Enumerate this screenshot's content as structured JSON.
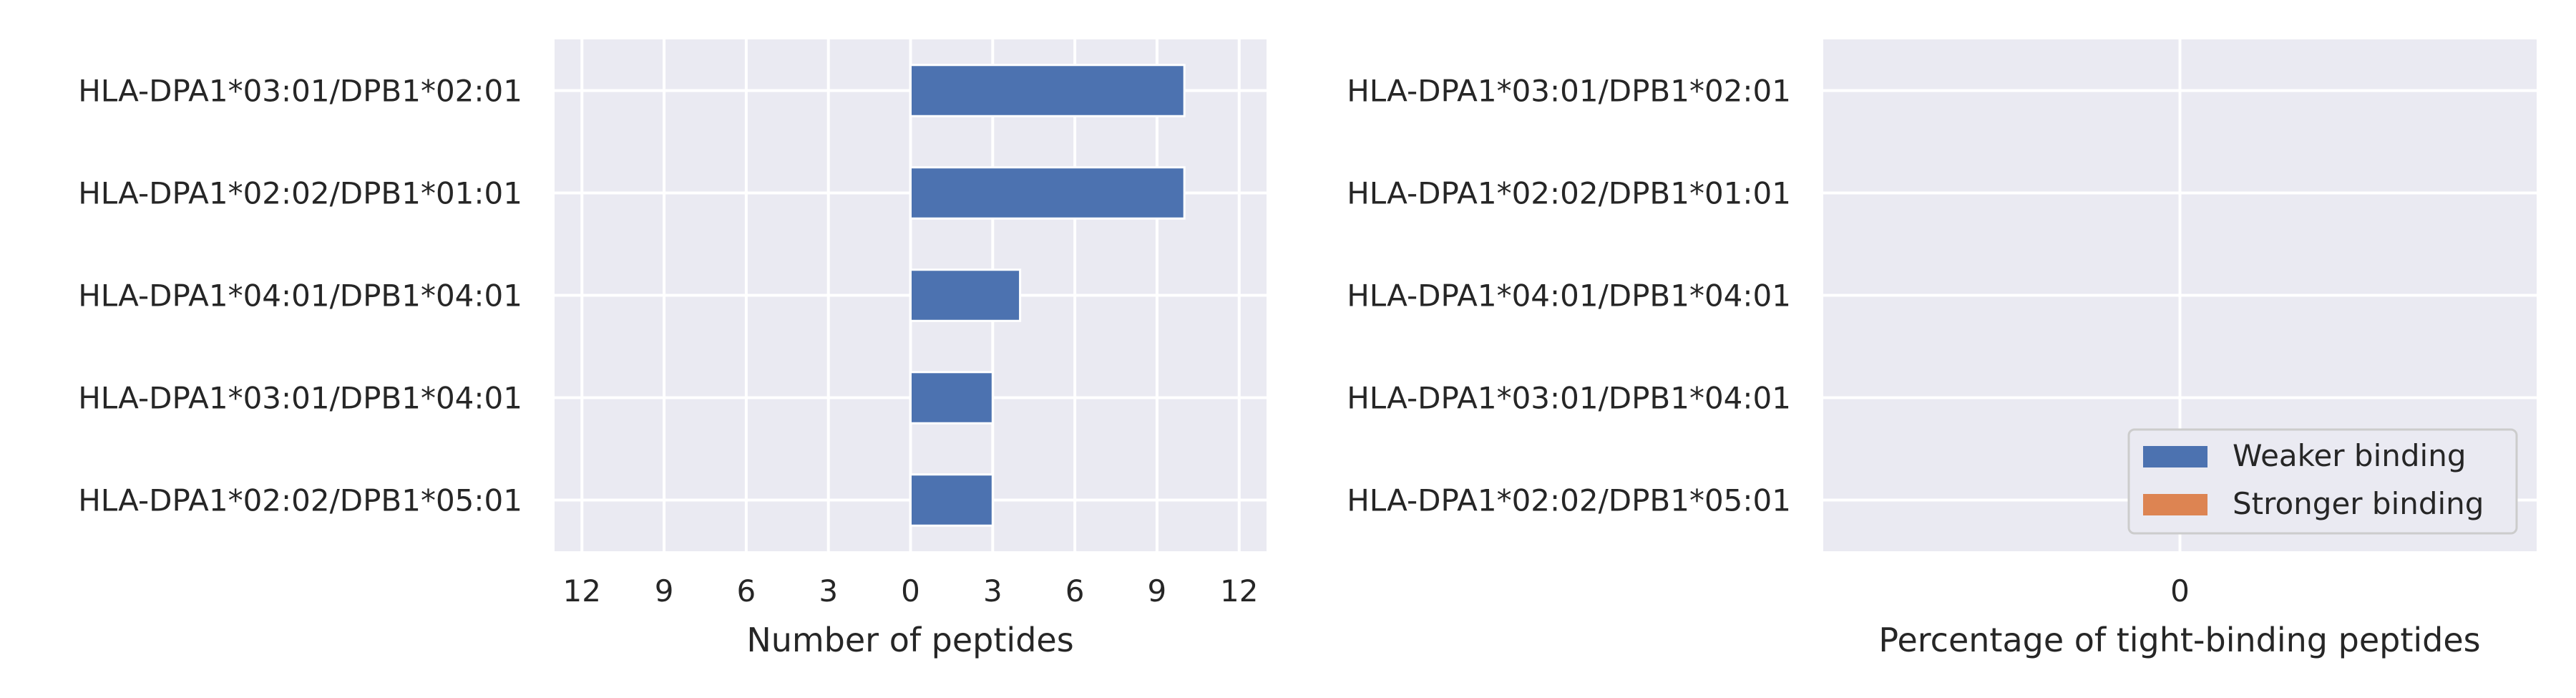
{
  "chart_data": [
    {
      "type": "bar",
      "orientation": "horizontal",
      "categories": [
        "HLA-DPA1*03:01/DPB1*02:01",
        "HLA-DPA1*02:02/DPB1*01:01",
        "HLA-DPA1*04:01/DPB1*04:01",
        "HLA-DPA1*03:01/DPB1*04:01",
        "HLA-DPA1*02:02/DPB1*05:01"
      ],
      "series": [
        {
          "values": [
            10,
            10,
            4,
            3,
            3
          ],
          "color": "#4c72b0"
        }
      ],
      "xlabel": "Number of peptides",
      "xlim": [
        -13,
        13
      ],
      "xticks": [
        -12,
        -9,
        -6,
        -3,
        0,
        3,
        6,
        9,
        12
      ],
      "xtick_labels": [
        "12",
        "9",
        "6",
        "3",
        "0",
        "3",
        "6",
        "9",
        "12"
      ],
      "grid": true,
      "background": "#eaeaf2"
    },
    {
      "type": "bar",
      "orientation": "horizontal",
      "categories": [
        "HLA-DPA1*03:01/DPB1*02:01",
        "HLA-DPA1*02:02/DPB1*01:01",
        "HLA-DPA1*04:01/DPB1*04:01",
        "HLA-DPA1*03:01/DPB1*04:01",
        "HLA-DPA1*02:02/DPB1*05:01"
      ],
      "series": [
        {
          "name": "Weaker binding",
          "values": [
            0,
            0,
            0,
            0,
            0
          ],
          "color": "#4c72b0"
        },
        {
          "name": "Stronger binding",
          "values": [
            0,
            0,
            0,
            0,
            0
          ],
          "color": "#dd8452"
        }
      ],
      "xlabel": "Percentage of tight-binding peptides",
      "xlim": [
        -1,
        1
      ],
      "xticks": [
        0
      ],
      "xtick_labels": [
        "0"
      ],
      "legend": "lower-right",
      "grid": true,
      "background": "#eaeaf2"
    }
  ]
}
